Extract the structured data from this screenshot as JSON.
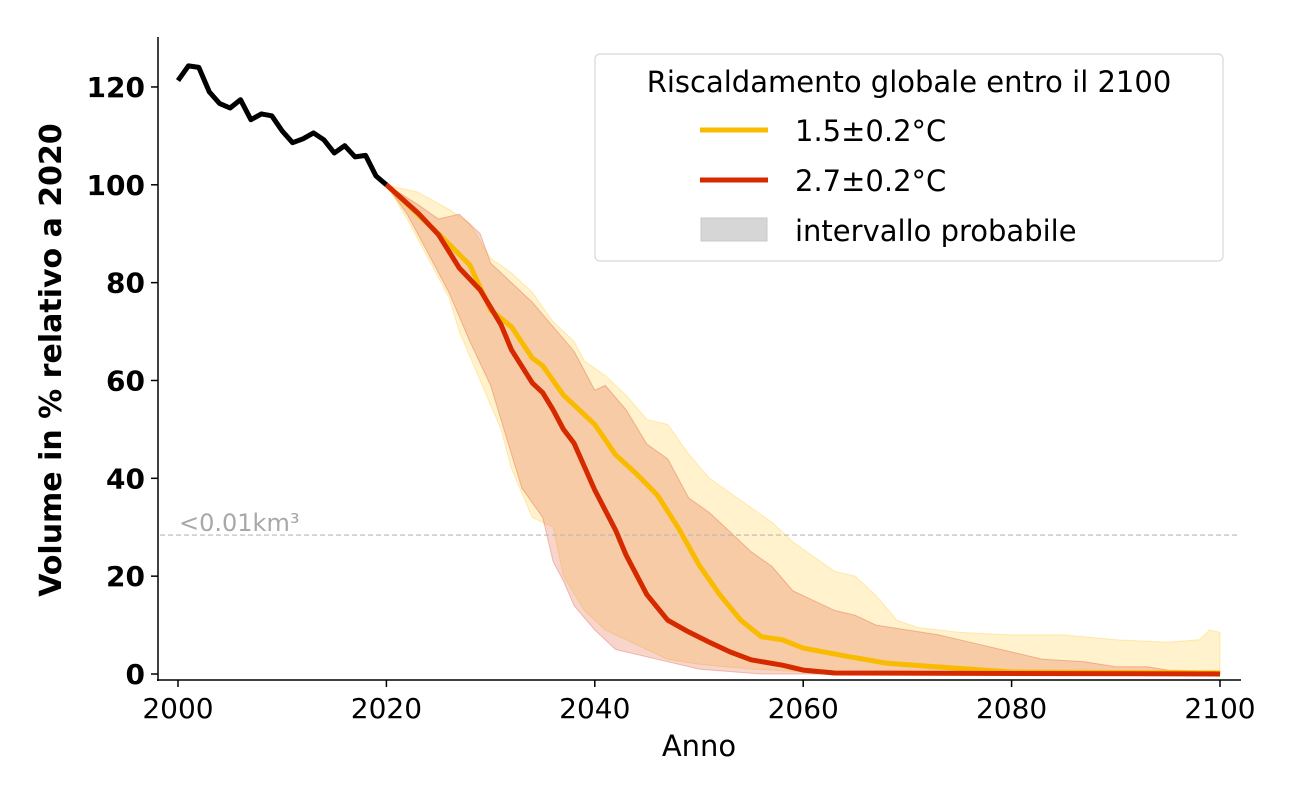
{
  "chart_data": {
    "type": "line",
    "xlabel": "Anno",
    "ylabel": "Volume in % relativo a 2020",
    "xlim": [
      1998,
      2102
    ],
    "ylim": [
      -1,
      130
    ],
    "xticks": [
      2000,
      2020,
      2040,
      2060,
      2080,
      2100
    ],
    "yticks": [
      0,
      20,
      40,
      60,
      80,
      100,
      120
    ],
    "grid": false,
    "legend": {
      "title": "Riscaldamento globale entro il 2100",
      "placement": "top-right",
      "entries": [
        "1.5±0.2°C",
        "2.7±0.2°C",
        "intervallo probabile"
      ]
    },
    "annotation": {
      "text": "<0.01km³",
      "y": 28.4
    },
    "colors": {
      "historic": "#000000",
      "s15": "#f8bb00",
      "s27": "#d52a00",
      "band": "#d6d6d6"
    },
    "historic": {
      "x": [
        2000,
        2001,
        2002,
        2003,
        2004,
        2005,
        2006,
        2007,
        2008,
        2009,
        2010,
        2011,
        2012,
        2013,
        2014,
        2015,
        2016,
        2017,
        2018,
        2019,
        2020
      ],
      "y": [
        121.3,
        124.3,
        124,
        119,
        116.6,
        115.7,
        117.4,
        113.3,
        114.5,
        114.1,
        111,
        108.6,
        109.4,
        110.6,
        109.2,
        106.5,
        108,
        105.7,
        106,
        101.8,
        100
      ]
    },
    "series": [
      {
        "name": "1.5±0.2°C",
        "x": [
          2020,
          2025,
          2028,
          2030,
          2032,
          2034,
          2035,
          2037,
          2038,
          2040,
          2042,
          2044,
          2046,
          2048,
          2050,
          2052,
          2054,
          2056,
          2058,
          2060,
          2064,
          2068,
          2072,
          2080,
          2100
        ],
        "y": [
          100,
          90,
          83.6,
          74.4,
          71,
          64.6,
          63,
          57,
          55,
          51,
          44.8,
          40.9,
          36.6,
          29.9,
          22.3,
          16.2,
          11,
          7.6,
          7,
          5.3,
          3.7,
          2.2,
          1.6,
          0.4,
          0.2
        ],
        "upper": {
          "x": [
            2020,
            2023,
            2026,
            2028,
            2030,
            2032,
            2034,
            2036,
            2038,
            2039,
            2041,
            2043,
            2045,
            2047,
            2049,
            2051,
            2053,
            2055,
            2057,
            2059,
            2061,
            2063,
            2065,
            2067,
            2069,
            2071,
            2075,
            2080,
            2085,
            2090,
            2095,
            2098,
            2099,
            2100
          ],
          "y": [
            100,
            98.5,
            95,
            92,
            85,
            82,
            78,
            72,
            68,
            64,
            61,
            57,
            52,
            51,
            45,
            40,
            37,
            34,
            31,
            27,
            24,
            21,
            20,
            16,
            11,
            9.5,
            8.5,
            8,
            8,
            7,
            6.5,
            7,
            9,
            8.5
          ]
        },
        "lower": {
          "x": [
            2020,
            2022,
            2024,
            2026,
            2027,
            2029,
            2031,
            2032,
            2033,
            2034,
            2036,
            2037,
            2039,
            2041,
            2043,
            2045,
            2047,
            2050,
            2055,
            2060,
            2070,
            2100
          ],
          "y": [
            100,
            93,
            85,
            77,
            70,
            60,
            50,
            42,
            37,
            32,
            30,
            20,
            13,
            9,
            7,
            5,
            3,
            2,
            1,
            0.5,
            0,
            0
          ]
        }
      },
      {
        "name": "2.7±0.2°C",
        "x": [
          2020,
          2023,
          2025,
          2027,
          2029,
          2031,
          2032,
          2034,
          2035,
          2036,
          2037,
          2038,
          2040,
          2042,
          2043,
          2045,
          2047,
          2049,
          2051,
          2053,
          2055,
          2058,
          2060,
          2063,
          2100
        ],
        "y": [
          100,
          94.3,
          89.8,
          83,
          78.5,
          71.4,
          66.3,
          59.5,
          57.5,
          54,
          50,
          47.2,
          37.6,
          29.4,
          24.3,
          16.2,
          11,
          8.6,
          6.5,
          4.5,
          2.9,
          1.8,
          0.8,
          0.2,
          0
        ],
        "upper": {
          "x": [
            2020,
            2023,
            2025,
            2027,
            2029,
            2030,
            2032,
            2034,
            2036,
            2038,
            2040,
            2041,
            2043,
            2045,
            2047,
            2049,
            2051,
            2053,
            2055,
            2057,
            2059,
            2061,
            2063,
            2065,
            2067,
            2070,
            2073,
            2076,
            2080,
            2083,
            2087,
            2090,
            2093,
            2095,
            2100
          ],
          "y": [
            100,
            96,
            93,
            94,
            90,
            84,
            80,
            76,
            71,
            66,
            58,
            59,
            54,
            47,
            44,
            36,
            33,
            29,
            25,
            22,
            17,
            15,
            13,
            12,
            10,
            9,
            8,
            6.5,
            4.5,
            3,
            2.5,
            1.5,
            1.5,
            0.8,
            0.5
          ]
        },
        "lower": {
          "x": [
            2020,
            2022,
            2024,
            2026,
            2028,
            2030,
            2032,
            2033,
            2035,
            2036,
            2037,
            2038,
            2040,
            2042,
            2044,
            2046,
            2048,
            2050,
            2053,
            2056,
            2100
          ],
          "y": [
            100,
            94,
            86,
            78,
            68,
            59,
            45,
            38,
            32,
            23,
            19,
            14,
            9,
            5,
            4,
            3,
            2,
            1,
            0.5,
            0,
            0
          ]
        }
      }
    ]
  }
}
